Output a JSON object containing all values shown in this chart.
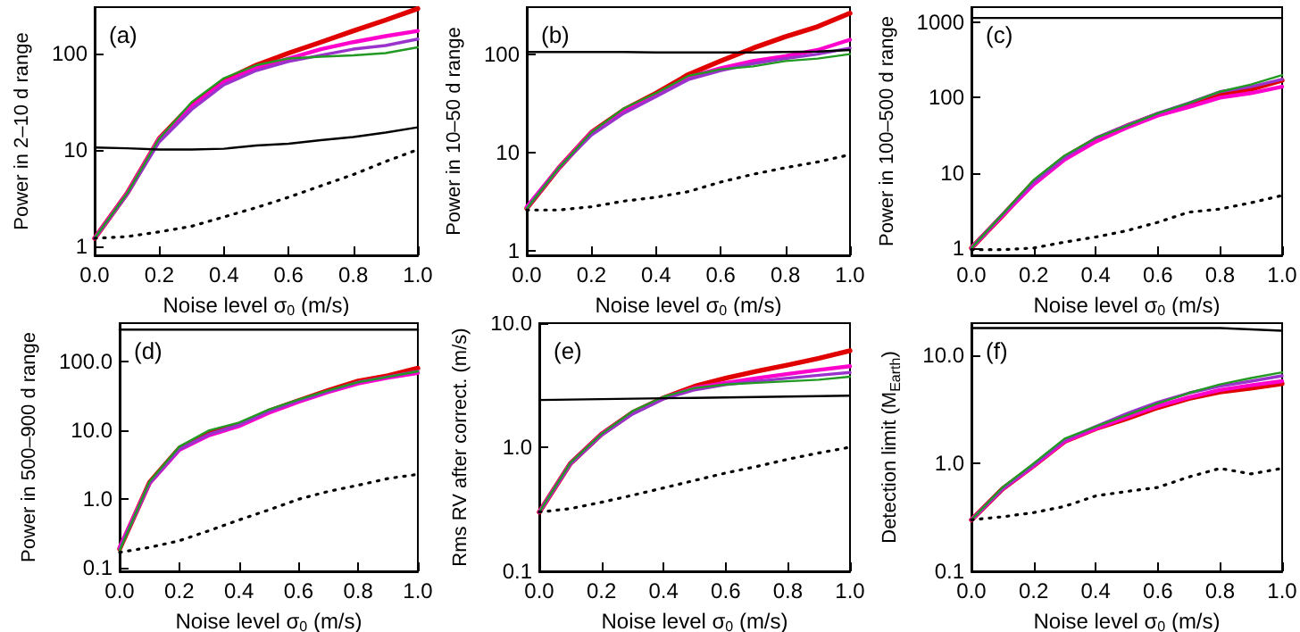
{
  "chart_data": [
    {
      "type": "line",
      "xlabel": "Noise level σ$_{0}$ (m/s)",
      "ylabel": "Power in 2–10 d range",
      "annotations": [
        "(a)"
      ],
      "log": true,
      "grid": false,
      "marker": "none",
      "xlim": [
        0,
        1
      ],
      "xticks": [
        {
          "value": 0,
          "label": "0.0"
        },
        {
          "value": 0.2,
          "label": "0.2"
        },
        {
          "value": 0.4,
          "label": "0.4"
        },
        {
          "value": 0.6,
          "label": "0.6"
        },
        {
          "value": 0.8,
          "label": "0.8"
        },
        {
          "value": 1,
          "label": "1.0"
        }
      ],
      "ylim": [
        0.8,
        300
      ],
      "yticks": [
        1,
        10,
        100
      ],
      "x": [
        0,
        0.1,
        0.2,
        0.3,
        0.4,
        0.5,
        0.6,
        0.7,
        0.8,
        0.9,
        1
      ],
      "series": [
        {
          "color": "#e00000",
          "line_style": "solid",
          "values": [
            1.2,
            3.5,
            13,
            29,
            52,
            75,
            100,
            130,
            170,
            220,
            290
          ]
        },
        {
          "color": "#ff00cc",
          "line_style": "solid",
          "values": [
            1.2,
            3.5,
            13,
            28,
            50,
            70,
            88,
            110,
            130,
            150,
            170
          ]
        },
        {
          "color": "#9933cc",
          "line_style": "solid",
          "values": [
            1.2,
            3.4,
            12,
            26,
            47,
            66,
            82,
            95,
            110,
            120,
            140
          ]
        },
        {
          "color": "#229922",
          "line_style": "solid",
          "values": [
            1.2,
            3.5,
            13,
            31,
            55,
            75,
            88,
            92,
            95,
            100,
            115
          ]
        },
        {
          "color": "#000000",
          "line_style": "solid",
          "values": [
            10.5,
            10.3,
            10,
            10,
            10.2,
            11,
            11.5,
            12.5,
            13.5,
            15,
            17
          ]
        },
        {
          "color": "#000000",
          "line_style": "dotted",
          "values": [
            1.2,
            1.25,
            1.4,
            1.6,
            2,
            2.5,
            3.2,
            4.2,
            5.5,
            7.5,
            10
          ]
        }
      ]
    },
    {
      "type": "line",
      "xlabel": "Noise level σ$_{0}$ (m/s)",
      "ylabel": "Power in 10–50 d range",
      "annotations": [
        "(b)"
      ],
      "log": true,
      "grid": false,
      "marker": "none",
      "xlim": [
        0,
        1
      ],
      "xticks": [
        {
          "value": 0,
          "label": "0.0"
        },
        {
          "value": 0.2,
          "label": "0.2"
        },
        {
          "value": 0.4,
          "label": "0.4"
        },
        {
          "value": 0.6,
          "label": "0.6"
        },
        {
          "value": 0.8,
          "label": "0.8"
        },
        {
          "value": 1,
          "label": "1.0"
        }
      ],
      "ylim": [
        0.9,
        300
      ],
      "yticks": [
        1,
        10,
        100
      ],
      "x": [
        0,
        0.1,
        0.2,
        0.3,
        0.4,
        0.5,
        0.6,
        0.7,
        0.8,
        0.9,
        1
      ],
      "series": [
        {
          "color": "#e00000",
          "line_style": "solid",
          "values": [
            2.7,
            7,
            16,
            27,
            40,
            62,
            85,
            115,
            150,
            190,
            260
          ]
        },
        {
          "color": "#ff00cc",
          "line_style": "solid",
          "values": [
            2.8,
            7,
            16,
            26,
            38,
            58,
            72,
            85,
            95,
            110,
            140
          ]
        },
        {
          "color": "#9933cc",
          "line_style": "solid",
          "values": [
            2.7,
            7,
            15,
            25,
            37,
            55,
            68,
            80,
            90,
            100,
            115
          ]
        },
        {
          "color": "#229922",
          "line_style": "solid",
          "values": [
            2.7,
            7,
            16,
            28,
            40,
            60,
            70,
            75,
            85,
            90,
            100
          ]
        },
        {
          "color": "#000000",
          "line_style": "solid",
          "values": [
            105,
            105,
            105,
            105,
            104,
            104,
            104,
            104,
            105,
            106,
            110
          ]
        },
        {
          "color": "#000000",
          "line_style": "dotted",
          "values": [
            2.6,
            2.6,
            2.8,
            3.2,
            3.5,
            4,
            5,
            6,
            7,
            8,
            9.5
          ]
        }
      ]
    },
    {
      "type": "line",
      "xlabel": "Noise level σ$_{0}$ (m/s)",
      "ylabel": "Power in 100–500 d range",
      "annotations": [
        "(c)"
      ],
      "log": true,
      "grid": false,
      "marker": "none",
      "xlim": [
        0,
        1
      ],
      "xticks": [
        {
          "value": 0,
          "label": "0.0"
        },
        {
          "value": 0.2,
          "label": "0.2"
        },
        {
          "value": 0.4,
          "label": "0.4"
        },
        {
          "value": 0.6,
          "label": "0.6"
        },
        {
          "value": 0.8,
          "label": "0.8"
        },
        {
          "value": 1,
          "label": "1.0"
        }
      ],
      "ylim": [
        0.8,
        1600
      ],
      "yticks": [
        1,
        10,
        100,
        1000
      ],
      "x": [
        0,
        0.1,
        0.2,
        0.3,
        0.4,
        0.5,
        0.6,
        0.7,
        0.8,
        0.9,
        1
      ],
      "series": [
        {
          "color": "#e00000",
          "line_style": "solid",
          "values": [
            1,
            2.7,
            7.5,
            16,
            28,
            42,
            60,
            80,
            110,
            130,
            170
          ]
        },
        {
          "color": "#ff00cc",
          "line_style": "solid",
          "values": [
            1,
            2.7,
            7,
            15,
            26,
            40,
            58,
            75,
            100,
            115,
            140
          ]
        },
        {
          "color": "#9933cc",
          "line_style": "solid",
          "values": [
            1,
            2.8,
            7.5,
            16,
            29,
            43,
            62,
            85,
            120,
            140,
            175
          ]
        },
        {
          "color": "#229922",
          "line_style": "solid",
          "values": [
            1,
            2.8,
            8,
            17,
            29,
            42,
            62,
            85,
            120,
            150,
            200
          ]
        },
        {
          "color": "#000000",
          "line_style": "solid",
          "values": [
            1150,
            1150,
            1150,
            1150,
            1150,
            1150,
            1150,
            1150,
            1150,
            1150,
            1150
          ]
        },
        {
          "color": "#000000",
          "line_style": "dotted",
          "values": [
            0.95,
            0.95,
            1,
            1.2,
            1.4,
            1.7,
            2.2,
            3,
            3.3,
            4,
            5
          ]
        }
      ]
    },
    {
      "type": "line",
      "xlabel": "Noise level σ$_{0}$ (m/s)",
      "ylabel": "Power in 500–900 d range",
      "annotations": [
        "(d)"
      ],
      "log": true,
      "grid": false,
      "marker": "none",
      "xlim": [
        0,
        1
      ],
      "xticks": [
        {
          "value": 0,
          "label": "0.0"
        },
        {
          "value": 0.2,
          "label": "0.2"
        },
        {
          "value": 0.4,
          "label": "0.4"
        },
        {
          "value": 0.6,
          "label": "0.6"
        },
        {
          "value": 0.8,
          "label": "0.8"
        },
        {
          "value": 1,
          "label": "1.0"
        }
      ],
      "ylim": [
        0.09,
        360
      ],
      "yticks": [
        0.1,
        {
          "value": 1,
          "label": "1.0"
        },
        {
          "value": 10,
          "label": "10.0"
        },
        {
          "value": 100,
          "label": "100.0"
        }
      ],
      "x": [
        0,
        0.1,
        0.2,
        0.3,
        0.4,
        0.5,
        0.6,
        0.7,
        0.8,
        0.9,
        1
      ],
      "series": [
        {
          "color": "#e00000",
          "line_style": "solid",
          "values": [
            0.19,
            1.75,
            5.5,
            9,
            12,
            19,
            27,
            38,
            52,
            62,
            80
          ]
        },
        {
          "color": "#ff00cc",
          "line_style": "solid",
          "values": [
            0.2,
            1.7,
            5.2,
            8.5,
            11.5,
            18,
            26,
            36,
            48,
            58,
            68
          ]
        },
        {
          "color": "#9933cc",
          "line_style": "solid",
          "values": [
            0.19,
            1.7,
            5.3,
            8.8,
            12,
            19,
            27,
            37,
            50,
            60,
            72
          ]
        },
        {
          "color": "#229922",
          "line_style": "solid",
          "values": [
            0.18,
            1.8,
            5.8,
            10,
            13,
            20,
            28,
            38,
            50,
            60,
            72
          ]
        },
        {
          "color": "#000000",
          "line_style": "solid",
          "values": [
            290,
            290,
            290,
            290,
            290,
            290,
            290,
            290,
            290,
            290,
            290
          ]
        },
        {
          "color": "#000000",
          "line_style": "dotted",
          "values": [
            0.17,
            0.2,
            0.25,
            0.35,
            0.5,
            0.7,
            1,
            1.3,
            1.6,
            2,
            2.3
          ]
        }
      ]
    },
    {
      "type": "line",
      "xlabel": "Noise level σ$_{0}$ (m/s)",
      "ylabel": "Rms RV after correct. (m/s)",
      "annotations": [
        "(e)"
      ],
      "log": true,
      "grid": false,
      "marker": "none",
      "xlim": [
        0,
        1
      ],
      "xticks": [
        {
          "value": 0,
          "label": "0.0"
        },
        {
          "value": 0.2,
          "label": "0.2"
        },
        {
          "value": 0.4,
          "label": "0.4"
        },
        {
          "value": 0.6,
          "label": "0.6"
        },
        {
          "value": 0.8,
          "label": "0.8"
        },
        {
          "value": 1,
          "label": "1.0"
        }
      ],
      "ylim": [
        0.1,
        10
      ],
      "yticks": [
        0.1,
        {
          "value": 1,
          "label": "1.0"
        },
        {
          "value": 10,
          "label": "10.0"
        }
      ],
      "x": [
        0,
        0.1,
        0.2,
        0.3,
        0.4,
        0.5,
        0.6,
        0.7,
        0.8,
        0.9,
        1
      ],
      "series": [
        {
          "color": "#e00000",
          "line_style": "solid",
          "values": [
            0.3,
            0.74,
            1.27,
            1.9,
            2.5,
            3.1,
            3.6,
            4.1,
            4.6,
            5.2,
            6
          ]
        },
        {
          "color": "#ff00cc",
          "line_style": "solid",
          "values": [
            0.3,
            0.74,
            1.27,
            1.9,
            2.5,
            3,
            3.3,
            3.6,
            3.9,
            4.2,
            4.5
          ]
        },
        {
          "color": "#9933cc",
          "line_style": "solid",
          "values": [
            0.3,
            0.73,
            1.25,
            1.85,
            2.45,
            2.9,
            3.2,
            3.4,
            3.6,
            3.8,
            4
          ]
        },
        {
          "color": "#229922",
          "line_style": "solid",
          "values": [
            0.3,
            0.75,
            1.28,
            1.95,
            2.55,
            3,
            3.2,
            3.3,
            3.4,
            3.5,
            3.7
          ]
        },
        {
          "color": "#000000",
          "line_style": "solid",
          "values": [
            2.4,
            2.42,
            2.44,
            2.46,
            2.48,
            2.5,
            2.52,
            2.54,
            2.56,
            2.58,
            2.6
          ]
        },
        {
          "color": "#000000",
          "line_style": "dotted",
          "values": [
            0.3,
            0.32,
            0.36,
            0.41,
            0.47,
            0.54,
            0.62,
            0.7,
            0.8,
            0.9,
            1
          ]
        }
      ]
    },
    {
      "type": "line",
      "xlabel": "Noise level σ$_{0}$ (m/s)",
      "ylabel": "Detection limit (M$_{Earth}$)",
      "annotations": [
        "(f)"
      ],
      "log": true,
      "grid": false,
      "marker": "none",
      "xlim": [
        0,
        1
      ],
      "xticks": [
        {
          "value": 0,
          "label": "0.0"
        },
        {
          "value": 0.2,
          "label": "0.2"
        },
        {
          "value": 0.4,
          "label": "0.4"
        },
        {
          "value": 0.6,
          "label": "0.6"
        },
        {
          "value": 0.8,
          "label": "0.8"
        },
        {
          "value": 1,
          "label": "1.0"
        }
      ],
      "ylim": [
        0.1,
        20
      ],
      "yticks": [
        0.1,
        {
          "value": 1,
          "label": "1.0"
        },
        {
          "value": 10,
          "label": "10.0"
        }
      ],
      "x": [
        0,
        0.1,
        0.2,
        0.3,
        0.4,
        0.5,
        0.6,
        0.7,
        0.8,
        0.9,
        1
      ],
      "series": [
        {
          "color": "#e00000",
          "line_style": "solid",
          "values": [
            0.3,
            0.58,
            0.95,
            1.6,
            2.1,
            2.6,
            3.3,
            4,
            4.6,
            5,
            5.5
          ]
        },
        {
          "color": "#ff00cc",
          "line_style": "solid",
          "values": [
            0.3,
            0.58,
            0.95,
            1.6,
            2.1,
            2.7,
            3.4,
            4.1,
            4.8,
            5.3,
            5.8
          ]
        },
        {
          "color": "#9933cc",
          "line_style": "solid",
          "values": [
            0.3,
            0.58,
            0.97,
            1.65,
            2.2,
            2.9,
            3.7,
            4.5,
            5.2,
            5.8,
            6.5
          ]
        },
        {
          "color": "#229922",
          "line_style": "solid",
          "values": [
            0.3,
            0.6,
            1,
            1.7,
            2.2,
            2.8,
            3.6,
            4.5,
            5.4,
            6.2,
            7
          ]
        },
        {
          "color": "#000000",
          "line_style": "solid",
          "values": [
            18,
            18,
            18,
            18,
            18,
            18,
            18,
            18,
            18,
            17.5,
            17
          ]
        },
        {
          "color": "#000000",
          "line_style": "dotted",
          "values": [
            0.3,
            0.32,
            0.35,
            0.4,
            0.5,
            0.55,
            0.6,
            0.75,
            0.9,
            0.8,
            0.9
          ]
        }
      ]
    }
  ]
}
